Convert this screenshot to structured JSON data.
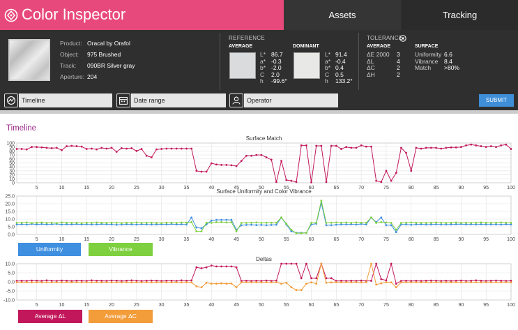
{
  "header": {
    "title": "Color Inspector",
    "tabs": [
      "Assets",
      "Tracking"
    ]
  },
  "sample": {
    "rows": [
      {
        "label": "Product:",
        "value": "Oracal by Orafol"
      },
      {
        "label": "Object:",
        "value": "975 Brushed"
      },
      {
        "label": "Track:",
        "value": "090BR Silver gray"
      },
      {
        "label": "Aperture:",
        "value": "204"
      }
    ]
  },
  "reference": {
    "heading": "REFERENCE",
    "average": {
      "label": "AVERAGE",
      "color": "#d9dbdc",
      "keys": [
        "L*",
        "a*",
        "b*",
        "C",
        "h"
      ],
      "values": [
        "86.7",
        "-0.3",
        "-2.0",
        "2.0",
        "-99.6°"
      ]
    },
    "dominant": {
      "label": "DOMINANT",
      "color": "#e8e8e6",
      "keys": [
        "L*",
        "a*",
        "b*",
        "C",
        "h"
      ],
      "values": [
        "91.4",
        "-0.4",
        "0.4",
        "0.5",
        "133.2°"
      ]
    }
  },
  "tolerance": {
    "heading": "TOLERANCE",
    "icon": "close-circle-icon",
    "average": {
      "label": "AVERAGE",
      "keys": [
        "ΔE 2000",
        "ΔL",
        "ΔC",
        "ΔH"
      ],
      "values": [
        "3",
        "4",
        "2",
        "2"
      ]
    },
    "surface": {
      "label": "SURFACE",
      "keys": [
        "Uniformity",
        "Vibrance",
        "Match"
      ],
      "values": [
        "6.6",
        "8.4",
        ">80%"
      ]
    }
  },
  "filters": {
    "timeline": "Timeline",
    "date_range": "Date range",
    "operator": "Operator",
    "submit": "SUBMIT"
  },
  "panel": {
    "title": "Timeline"
  },
  "colors": {
    "brand": "#e8497c",
    "match": "#c2185b",
    "uniformity": "#3f8fe0",
    "vibrance": "#7ed03f",
    "average_dl": "#c2185b",
    "average_dc": "#f39c3a",
    "submit": "#3e8ed8"
  },
  "chart_data": [
    {
      "type": "line",
      "title": "Surface Match",
      "x": [
        1,
        2,
        3,
        4,
        5,
        6,
        7,
        8,
        9,
        10,
        11,
        12,
        13,
        14,
        15,
        16,
        17,
        18,
        19,
        20,
        21,
        22,
        23,
        24,
        25,
        26,
        27,
        28,
        29,
        30,
        31,
        32,
        33,
        34,
        35,
        36,
        37,
        38,
        39,
        40,
        41,
        42,
        43,
        44,
        45,
        46,
        47,
        48,
        49,
        50,
        51,
        52,
        53,
        54,
        55,
        56,
        57,
        58,
        59,
        60,
        61,
        62,
        63,
        64,
        65,
        66,
        67,
        68,
        69,
        70,
        71,
        72,
        73,
        74,
        75,
        76,
        77,
        78,
        79,
        80,
        81,
        82,
        83,
        84,
        85,
        86,
        87,
        88,
        89,
        90,
        91,
        92,
        93,
        94,
        95,
        96,
        97,
        98,
        99,
        100
      ],
      "ylim": [
        0,
        100
      ],
      "yticks": [
        0,
        10,
        20,
        30,
        40,
        50,
        60,
        70,
        80,
        90,
        100
      ],
      "xticks": [
        5,
        10,
        15,
        20,
        25,
        30,
        35,
        40,
        45,
        50,
        55,
        60,
        65,
        70,
        75,
        80,
        85,
        90,
        95,
        100
      ],
      "series": [
        {
          "values": [
            85,
            85,
            84,
            90,
            90,
            89,
            88,
            87,
            88,
            82,
            92,
            93,
            92,
            91,
            85,
            86,
            84,
            88,
            86,
            88,
            78,
            87,
            86,
            87,
            80,
            85,
            68,
            64,
            84,
            85,
            86,
            86,
            86,
            86,
            86,
            86,
            30,
            28,
            28,
            49,
            46,
            45,
            45,
            44,
            42,
            55,
            68,
            68,
            70,
            70,
            64,
            58,
            2,
            55,
            7,
            5,
            2,
            94,
            94,
            1,
            93,
            93,
            2,
            93,
            93,
            85,
            90,
            88,
            88,
            94,
            91,
            91,
            5,
            2,
            30,
            5,
            25,
            88,
            75,
            30,
            88,
            86,
            88,
            88,
            88,
            86,
            88,
            89,
            89,
            90,
            94,
            96,
            94,
            92,
            90,
            92,
            90,
            94,
            96,
            85
          ]
        }
      ]
    },
    {
      "type": "line",
      "title": "Surface Uniformity and Color Vibrance",
      "x": [
        1,
        2,
        3,
        4,
        5,
        6,
        7,
        8,
        9,
        10,
        11,
        12,
        13,
        14,
        15,
        16,
        17,
        18,
        19,
        20,
        21,
        22,
        23,
        24,
        25,
        26,
        27,
        28,
        29,
        30,
        31,
        32,
        33,
        34,
        35,
        36,
        37,
        38,
        39,
        40,
        41,
        42,
        43,
        44,
        45,
        46,
        47,
        48,
        49,
        50,
        51,
        52,
        53,
        54,
        55,
        56,
        57,
        58,
        59,
        60,
        61,
        62,
        63,
        64,
        65,
        66,
        67,
        68,
        69,
        70,
        71,
        72,
        73,
        74,
        75,
        76,
        77,
        78,
        79,
        80,
        81,
        82,
        83,
        84,
        85,
        86,
        87,
        88,
        89,
        90,
        91,
        92,
        93,
        94,
        95,
        96,
        97,
        98,
        99,
        100
      ],
      "ylim": [
        0,
        25
      ],
      "yticks": [
        0.0,
        5.0,
        10.0,
        15.0,
        20.0,
        25.0
      ],
      "xticks": [
        5,
        10,
        15,
        20,
        25,
        30,
        35,
        40,
        45,
        50,
        55,
        60,
        65,
        70,
        75,
        80,
        85,
        90,
        95,
        100
      ],
      "series": [
        {
          "name": "Uniformity",
          "values": [
            6.5,
            6.6,
            6.4,
            6.8,
            6.5,
            6.7,
            6.5,
            6.6,
            6.8,
            6.4,
            6.6,
            6.5,
            6.7,
            6.5,
            6.6,
            6.4,
            6.5,
            6.7,
            6.6,
            6.5,
            6.3,
            6.4,
            6.6,
            6.5,
            6.4,
            6.6,
            6.5,
            6.4,
            6.5,
            6.6,
            6.5,
            6.7,
            6.5,
            6.6,
            6.4,
            11.0,
            4.5,
            4.0,
            6.5,
            9.0,
            9.5,
            9.5,
            9.5,
            9.5,
            3.0,
            6.0,
            6.2,
            6.3,
            6.1,
            6.2,
            6.0,
            6.2,
            6.3,
            11.0,
            6.5,
            2.0,
            1.0,
            1.0,
            1.0,
            6.5,
            7.0,
            20.5,
            6.0,
            6.0,
            6.3,
            6.5,
            6.5,
            6.6,
            6.4,
            6.8,
            6.5,
            11.0,
            8.0,
            11.0,
            6.0,
            6.0,
            1.5,
            6.5,
            6.5,
            6.3,
            6.5,
            6.6,
            6.4,
            6.5,
            6.6,
            6.4,
            6.5,
            6.5,
            6.6,
            6.7,
            6.5,
            6.6,
            6.4,
            6.6,
            6.5,
            6.5,
            6.5,
            6.4,
            6.6,
            6.5
          ]
        },
        {
          "name": "Vibrance",
          "values": [
            7.5,
            7.6,
            7.8,
            7.4,
            7.6,
            7.8,
            7.5,
            7.6,
            7.4,
            7.8,
            7.6,
            7.5,
            7.6,
            7.4,
            7.6,
            7.5,
            7.8,
            7.6,
            7.5,
            7.6,
            7.6,
            7.4,
            7.6,
            7.5,
            7.8,
            7.5,
            7.6,
            7.6,
            7.5,
            7.4,
            7.6,
            7.6,
            7.5,
            7.8,
            7.6,
            8.0,
            2.0,
            2.0,
            7.6,
            7.5,
            8.0,
            8.0,
            7.8,
            8.0,
            2.0,
            7.5,
            7.5,
            7.6,
            7.8,
            7.5,
            7.6,
            7.6,
            7.6,
            11.0,
            7.0,
            3.0,
            0.8,
            0.8,
            1.0,
            7.5,
            7.6,
            22.0,
            7.5,
            7.6,
            7.8,
            7.6,
            7.8,
            7.5,
            7.8,
            7.6,
            7.6,
            11.0,
            7.5,
            8.0,
            7.8,
            7.5,
            3.0,
            7.5,
            7.6,
            7.8,
            7.6,
            7.5,
            7.5,
            7.6,
            7.8,
            7.6,
            7.5,
            7.6,
            7.8,
            7.5,
            7.6,
            7.5,
            7.6,
            7.8,
            7.6,
            7.5,
            7.6,
            7.8,
            7.6,
            7.5
          ]
        }
      ]
    },
    {
      "type": "line",
      "title": "Deltas",
      "x": [
        1,
        2,
        3,
        4,
        5,
        6,
        7,
        8,
        9,
        10,
        11,
        12,
        13,
        14,
        15,
        16,
        17,
        18,
        19,
        20,
        21,
        22,
        23,
        24,
        25,
        26,
        27,
        28,
        29,
        30,
        31,
        32,
        33,
        34,
        35,
        36,
        37,
        38,
        39,
        40,
        41,
        42,
        43,
        44,
        45,
        46,
        47,
        48,
        49,
        50,
        51,
        52,
        53,
        54,
        55,
        56,
        57,
        58,
        59,
        60,
        61,
        62,
        63,
        64,
        65,
        66,
        67,
        68,
        69,
        70,
        71,
        72,
        73,
        74,
        75,
        76,
        77,
        78,
        79,
        80,
        81,
        82,
        83,
        84,
        85,
        86,
        87,
        88,
        89,
        90,
        91,
        92,
        93,
        94,
        95,
        96,
        97,
        98,
        99,
        100
      ],
      "ylim": [
        -10,
        10
      ],
      "yticks": [
        -10.0,
        -5.0,
        0.0,
        5.0,
        10.0
      ],
      "xticks": [
        5,
        10,
        15,
        20,
        25,
        30,
        35,
        40,
        45,
        50,
        55,
        60,
        65,
        70,
        75,
        80,
        85,
        90,
        95,
        100
      ],
      "series": [
        {
          "name": "Average ΔL",
          "values": [
            0.5,
            0.6,
            0.5,
            0.7,
            0.6,
            0.5,
            0.8,
            0.6,
            0.5,
            0.7,
            0.6,
            0.5,
            0.6,
            0.6,
            0.5,
            0.8,
            0.6,
            0.6,
            0.5,
            0.7,
            0.6,
            0.5,
            0.6,
            0.8,
            0.6,
            0.5,
            0.6,
            0.7,
            0.6,
            0.5,
            0.6,
            0.6,
            0.5,
            0.8,
            0.6,
            0.8,
            8.0,
            7.5,
            8.0,
            9.0,
            8.5,
            8.5,
            8.5,
            8.5,
            8.0,
            0.5,
            0.6,
            0.5,
            0.6,
            0.5,
            0.7,
            0.5,
            0.6,
            10.0,
            10.0,
            10.0,
            10.0,
            2.0,
            10.0,
            2.0,
            2.0,
            10.0,
            2.0,
            2.0,
            0.5,
            0.6,
            0.5,
            0.6,
            0.5,
            0.7,
            0.5,
            0.6,
            10.0,
            1.5,
            0.8,
            10.0,
            -1.0,
            0.5,
            0.6,
            0.5,
            0.6,
            0.5,
            0.6,
            0.7,
            0.6,
            0.5,
            0.6,
            0.5,
            0.6,
            0.7,
            0.5,
            0.6,
            0.8,
            0.6,
            0.5,
            0.6,
            0.7,
            0.6,
            0.5,
            0.6
          ]
        },
        {
          "name": "Average ΔC",
          "values": [
            -0.2,
            -0.3,
            -0.2,
            -0.3,
            -0.2,
            -0.3,
            -0.2,
            -0.3,
            -0.2,
            -0.3,
            -0.2,
            -0.3,
            -0.2,
            -0.3,
            -0.2,
            -0.3,
            -0.2,
            -0.3,
            -0.2,
            -0.3,
            -0.2,
            -0.3,
            -0.2,
            -0.3,
            -0.2,
            -0.3,
            -0.2,
            -0.3,
            -0.2,
            -0.3,
            -0.2,
            -0.3,
            -0.2,
            -0.3,
            -0.2,
            -0.3,
            -2.5,
            -3.0,
            -0.5,
            -1.0,
            -1.0,
            -0.8,
            -1.0,
            -0.9,
            -3.0,
            -0.3,
            -0.2,
            -0.3,
            -0.2,
            -0.3,
            -0.2,
            -0.3,
            -0.2,
            -1.0,
            -0.5,
            -3.0,
            -4.5,
            -4.5,
            -1.0,
            -0.3,
            -1.0,
            10.0,
            -0.5,
            -0.3,
            -0.2,
            -0.3,
            -0.2,
            -0.3,
            -0.2,
            -0.3,
            -0.2,
            10.0,
            -1.5,
            -0.8,
            -0.2,
            -0.3,
            -3.0,
            -0.3,
            -0.2,
            -0.3,
            -0.2,
            -0.3,
            -0.2,
            -0.3,
            -0.2,
            -0.3,
            -0.2,
            -0.3,
            -0.2,
            -0.3,
            -0.2,
            -0.3,
            -0.2,
            -0.3,
            -0.2,
            -0.3,
            -0.2,
            -0.3,
            -0.2,
            -0.3
          ]
        }
      ]
    }
  ]
}
